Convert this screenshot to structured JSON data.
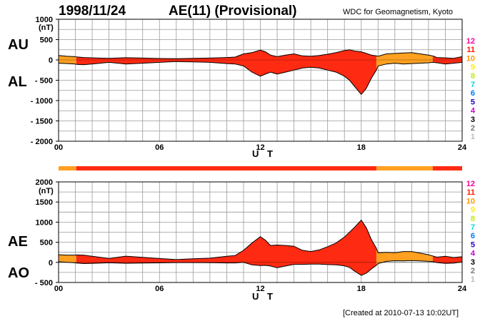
{
  "header": {
    "date": "1998/11/24",
    "title": "AE(11) (Provisional)",
    "source": "WDC for Geomagnetism, Kyoto"
  },
  "footer": {
    "created": "[Created at 2010-07-13 10:02UT]"
  },
  "colors": {
    "fill_main": "#ff2a12",
    "fill_orange": "#ffa020",
    "outline": "#000000",
    "grid": "#9a9a9a"
  },
  "station_legend": [
    {
      "label": "12",
      "color": "#ff0099"
    },
    {
      "label": "11",
      "color": "#ff1a00"
    },
    {
      "label": "10",
      "color": "#ff9900"
    },
    {
      "label": "9",
      "color": "#ffee00"
    },
    {
      "label": "8",
      "color": "#bbee00"
    },
    {
      "label": "7",
      "color": "#00dddd"
    },
    {
      "label": "6",
      "color": "#0077ff"
    },
    {
      "label": "5",
      "color": "#2200cc"
    },
    {
      "label": "4",
      "color": "#cc00cc"
    },
    {
      "label": "3",
      "color": "#000000"
    },
    {
      "label": "2",
      "color": "#777777"
    },
    {
      "label": "1",
      "color": "#bbbbbb"
    }
  ],
  "station_count_bar": [
    {
      "from": 0,
      "to": 1.05,
      "count": 10
    },
    {
      "from": 1.05,
      "to": 18.9,
      "count": 11
    },
    {
      "from": 18.9,
      "to": 22.25,
      "count": 10
    },
    {
      "from": 22.25,
      "to": 24,
      "count": 11
    }
  ],
  "chart_data": [
    {
      "type": "area",
      "name": "AU/AL panel",
      "top_series_label": "AU",
      "bottom_series_label": "AL",
      "unit": "(nT)",
      "xlabel": "U T",
      "xlim": [
        0,
        24
      ],
      "ylim": [
        -2000,
        1000
      ],
      "xticks": [
        "00",
        "06",
        "12",
        "18",
        "24"
      ],
      "xtick_values": [
        0,
        6,
        12,
        18,
        24
      ],
      "yticks": [
        "1000",
        "500",
        "0",
        "- 500",
        "- 1000",
        "- 1500",
        "- 2000"
      ],
      "ytick_values": [
        1000,
        500,
        0,
        -500,
        -1000,
        -1500,
        -2000
      ],
      "grid": true,
      "x": [
        0,
        0.5,
        1,
        1.05,
        1.5,
        2,
        3,
        4,
        5,
        6,
        7,
        8,
        9,
        10,
        10.5,
        11,
        11.5,
        12,
        12.3,
        12.6,
        13,
        13.5,
        14,
        14.5,
        15,
        15.5,
        16,
        16.5,
        17,
        17.3,
        17.6,
        18,
        18.3,
        18.6,
        18.9,
        19,
        19.5,
        20,
        20.5,
        21,
        21.5,
        22,
        22.25,
        22.5,
        23,
        23.5,
        24
      ],
      "series": [
        {
          "name": "AU",
          "values": [
            110,
            90,
            80,
            75,
            60,
            50,
            40,
            55,
            45,
            35,
            30,
            40,
            45,
            60,
            70,
            150,
            180,
            240,
            200,
            120,
            80,
            120,
            150,
            100,
            90,
            110,
            140,
            180,
            230,
            250,
            220,
            200,
            160,
            120,
            100,
            90,
            150,
            160,
            170,
            180,
            150,
            120,
            100,
            60,
            50,
            40,
            80
          ]
        },
        {
          "name": "AL",
          "values": [
            -80,
            -90,
            -100,
            -110,
            -120,
            -100,
            -60,
            -100,
            -80,
            -60,
            -40,
            -50,
            -60,
            -90,
            -100,
            -150,
            -300,
            -400,
            -350,
            -300,
            -350,
            -300,
            -250,
            -200,
            -180,
            -200,
            -250,
            -300,
            -400,
            -500,
            -650,
            -850,
            -700,
            -450,
            -250,
            -150,
            -100,
            -80,
            -100,
            -90,
            -80,
            -70,
            -60,
            -70,
            -100,
            -80,
            -60
          ]
        }
      ],
      "fill_segments": [
        {
          "from": 0,
          "to": 1.05,
          "color": "orange"
        },
        {
          "from": 1.05,
          "to": 18.9,
          "color": "main"
        },
        {
          "from": 18.9,
          "to": 22.25,
          "color": "orange"
        },
        {
          "from": 22.25,
          "to": 24,
          "color": "main"
        }
      ]
    },
    {
      "type": "area",
      "name": "AE/AO panel",
      "top_series_label": "AE",
      "bottom_series_label": "AO",
      "unit": "(nT)",
      "xlabel": "U T",
      "xlim": [
        0,
        24
      ],
      "ylim": [
        -500,
        2000
      ],
      "xticks": [
        "00",
        "06",
        "12",
        "18",
        "24"
      ],
      "xtick_values": [
        0,
        6,
        12,
        18,
        24
      ],
      "yticks": [
        "2000",
        "1500",
        "1000",
        "500",
        "0",
        "- 500"
      ],
      "ytick_values": [
        2000,
        1500,
        1000,
        500,
        0,
        -500
      ],
      "grid": true,
      "x": [
        0,
        0.5,
        1,
        1.05,
        1.5,
        2,
        3,
        4,
        5,
        6,
        7,
        8,
        9,
        10,
        10.5,
        11,
        11.5,
        12,
        12.3,
        12.6,
        13,
        13.5,
        14,
        14.5,
        15,
        15.5,
        16,
        16.5,
        17,
        17.3,
        17.6,
        18,
        18.3,
        18.6,
        18.9,
        19,
        19.5,
        20,
        20.5,
        21,
        21.5,
        22,
        22.25,
        22.5,
        23,
        23.5,
        24
      ],
      "series": [
        {
          "name": "AE",
          "values": [
            190,
            180,
            180,
            185,
            180,
            150,
            100,
            155,
            125,
            95,
            70,
            90,
            105,
            150,
            170,
            300,
            480,
            640,
            550,
            420,
            430,
            420,
            400,
            300,
            270,
            310,
            390,
            480,
            630,
            750,
            870,
            1050,
            860,
            570,
            350,
            240,
            250,
            240,
            270,
            270,
            230,
            190,
            160,
            130,
            150,
            120,
            140
          ]
        },
        {
          "name": "AO",
          "values": [
            15,
            0,
            -10,
            -18,
            -30,
            -25,
            -10,
            -23,
            -18,
            -13,
            -5,
            -5,
            -8,
            -15,
            -15,
            0,
            -60,
            -80,
            -75,
            -90,
            -135,
            -90,
            -50,
            -50,
            -45,
            -45,
            -55,
            -60,
            -85,
            -125,
            -215,
            -325,
            -270,
            -165,
            -75,
            -30,
            25,
            40,
            35,
            45,
            35,
            25,
            20,
            -5,
            -25,
            -20,
            10
          ]
        }
      ],
      "fill_segments": [
        {
          "from": 0,
          "to": 1.05,
          "color": "orange"
        },
        {
          "from": 1.05,
          "to": 18.9,
          "color": "main"
        },
        {
          "from": 18.9,
          "to": 22.25,
          "color": "orange"
        },
        {
          "from": 22.25,
          "to": 24,
          "color": "main"
        }
      ]
    }
  ]
}
